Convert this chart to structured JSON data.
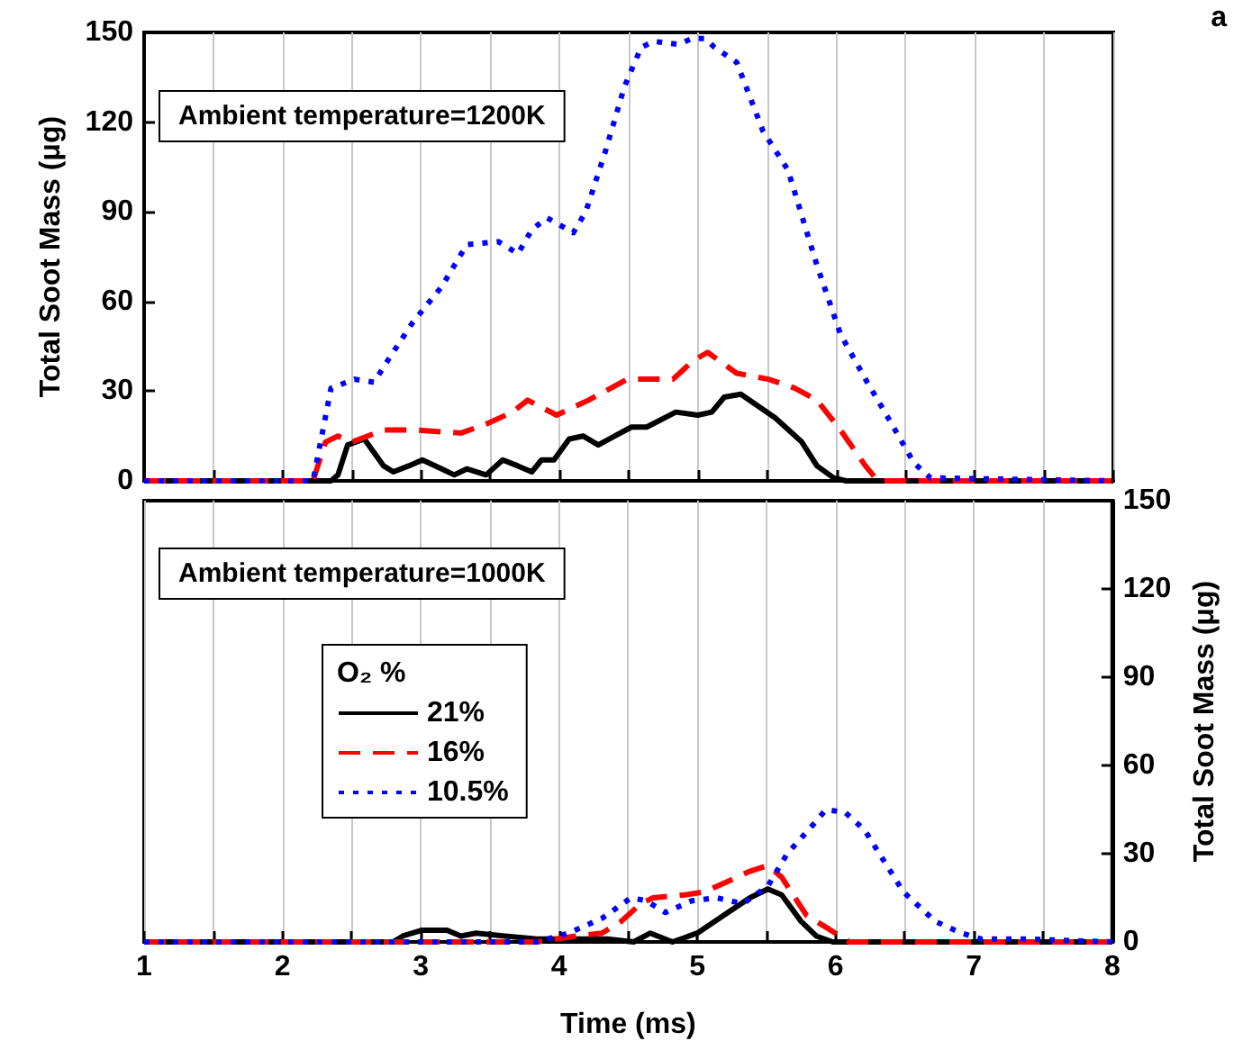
{
  "chart_data": [
    {
      "type": "line",
      "ylabel": "Total Soot Mass (μg)",
      "xlim": [
        1,
        8
      ],
      "xticks": [
        1,
        {
          "value": 1.5,
          "label": null
        },
        2,
        {
          "value": 2.5,
          "label": null
        },
        3,
        {
          "value": 3.5,
          "label": null
        },
        4,
        {
          "value": 4.5,
          "label": null
        },
        5,
        {
          "value": 5.5,
          "label": null
        },
        6,
        {
          "value": 6.5,
          "label": null
        },
        7,
        {
          "value": 7.5,
          "label": null
        },
        8
      ],
      "ylim": [
        0,
        150
      ],
      "yticks": [
        0,
        30,
        60,
        90,
        120,
        150
      ],
      "grid": "x",
      "tick_labels": "y",
      "legend": false,
      "marker": "none",
      "annotations": [
        "Ambient temperature=1200K",
        "a"
      ],
      "series": [
        {
          "color": "#000000",
          "line_style": "solid",
          "x": [
            1,
            2.35,
            2.4,
            2.47,
            2.59,
            2.73,
            2.8,
            2.91,
            3.01,
            3.15,
            3.24,
            3.33,
            3.47,
            3.59,
            3.7,
            3.8,
            3.87,
            3.96,
            4.07,
            4.17,
            4.28,
            4.4,
            4.52,
            4.63,
            4.84,
            5.0,
            5.1,
            5.19,
            5.31,
            5.56,
            5.75,
            5.86,
            5.98,
            6.07,
            8
          ],
          "values": [
            0,
            0,
            2,
            12,
            14,
            5,
            3,
            5,
            7,
            4,
            2,
            4,
            2,
            7,
            5,
            3,
            7,
            7,
            14,
            15,
            12,
            15,
            18,
            18,
            23,
            22,
            23,
            28,
            29,
            21,
            13,
            5,
            1,
            0,
            0
          ]
        },
        {
          "color": "#ff0000",
          "line_style": "dashed",
          "x": [
            1,
            2.22,
            2.31,
            2.4,
            2.5,
            2.73,
            2.96,
            3.29,
            3.47,
            3.66,
            3.77,
            3.98,
            4.21,
            4.49,
            4.59,
            4.82,
            4.96,
            5.07,
            5.28,
            5.51,
            5.7,
            5.86,
            6.03,
            6.21,
            6.3,
            8
          ],
          "values": [
            0,
            0,
            13,
            15,
            13,
            17,
            17,
            16,
            19,
            23,
            27,
            22,
            27,
            34,
            34,
            34,
            40,
            43,
            36,
            34,
            31,
            27,
            17,
            5,
            0,
            0
          ]
        },
        {
          "color": "#0000ff",
          "line_style": "dotted",
          "x": [
            1,
            2.22,
            2.35,
            2.52,
            2.66,
            2.77,
            2.94,
            3.15,
            3.33,
            3.56,
            3.7,
            3.8,
            3.91,
            4.1,
            4.19,
            4.33,
            4.47,
            4.59,
            4.68,
            4.86,
            4.96,
            5.05,
            5.12,
            5.28,
            5.47,
            5.65,
            5.86,
            6.03,
            6.21,
            6.4,
            6.56,
            6.68,
            8
          ],
          "values": [
            0,
            0,
            31,
            34,
            33,
            41,
            53,
            65,
            79,
            80,
            76,
            84,
            88,
            83,
            90,
            110,
            132,
            145,
            147,
            146,
            148,
            148,
            145,
            140,
            117,
            104,
            72,
            49,
            34,
            19,
            6,
            1,
            0
          ]
        }
      ]
    },
    {
      "type": "line",
      "xlabel": "Time (ms)",
      "y2label": "Total Soot Mass (μg)",
      "legend_title": "O₂ %",
      "xlim": [
        1,
        8
      ],
      "xticks": [
        1,
        {
          "value": 1.5,
          "label": null
        },
        2,
        {
          "value": 2.5,
          "label": null
        },
        3,
        {
          "value": 3.5,
          "label": null
        },
        4,
        {
          "value": 4.5,
          "label": null
        },
        5,
        {
          "value": 5.5,
          "label": null
        },
        6,
        {
          "value": 6.5,
          "label": null
        },
        7,
        {
          "value": 7.5,
          "label": null
        },
        8
      ],
      "y2lim": [
        0,
        150
      ],
      "y2ticks": [
        0,
        30,
        60,
        90,
        120,
        150
      ],
      "grid": "x",
      "legend": "left",
      "marker": "none",
      "annotations": [
        "Ambient temperature=1000K"
      ],
      "series": [
        {
          "name": "21%",
          "color": "#000000",
          "line_style": "solid",
          "axis": "y2",
          "x": [
            1,
            2.8,
            2.87,
            3.01,
            3.19,
            3.29,
            3.4,
            3.61,
            3.84,
            4.12,
            4.35,
            4.54,
            4.66,
            4.82,
            5.0,
            5.19,
            5.38,
            5.51,
            5.61,
            5.75,
            5.86,
            5.98,
            8
          ],
          "values": [
            0,
            0,
            2,
            4,
            4,
            2,
            3,
            2,
            1,
            1,
            1,
            0,
            3,
            0,
            3,
            9,
            15,
            18,
            16,
            7,
            2,
            0,
            0
          ]
        },
        {
          "name": "16%",
          "color": "#ff0000",
          "line_style": "dashed",
          "axis": "y2",
          "x": [
            1,
            3.84,
            4.12,
            4.31,
            4.45,
            4.59,
            4.68,
            4.91,
            5.05,
            5.24,
            5.38,
            5.51,
            5.61,
            5.79,
            5.93,
            6.1,
            8
          ],
          "values": [
            0,
            0,
            2,
            3,
            7,
            13,
            15,
            16,
            17,
            21,
            24,
            26,
            22,
            9,
            5,
            0,
            0
          ]
        },
        {
          "name": "10.5%",
          "color": "#0000ff",
          "line_style": "dotted",
          "axis": "y2",
          "x": [
            1,
            3.84,
            4.07,
            4.31,
            4.52,
            4.63,
            4.77,
            4.96,
            5.14,
            5.33,
            5.51,
            5.65,
            5.84,
            5.93,
            6.07,
            6.21,
            6.49,
            6.72,
            6.91,
            7.05,
            7.37,
            8
          ],
          "values": [
            0,
            0,
            3,
            8,
            15,
            14,
            10,
            14,
            15,
            13,
            19,
            30,
            40,
            45,
            44,
            38,
            17,
            7,
            3,
            1,
            1,
            0
          ]
        }
      ]
    }
  ]
}
